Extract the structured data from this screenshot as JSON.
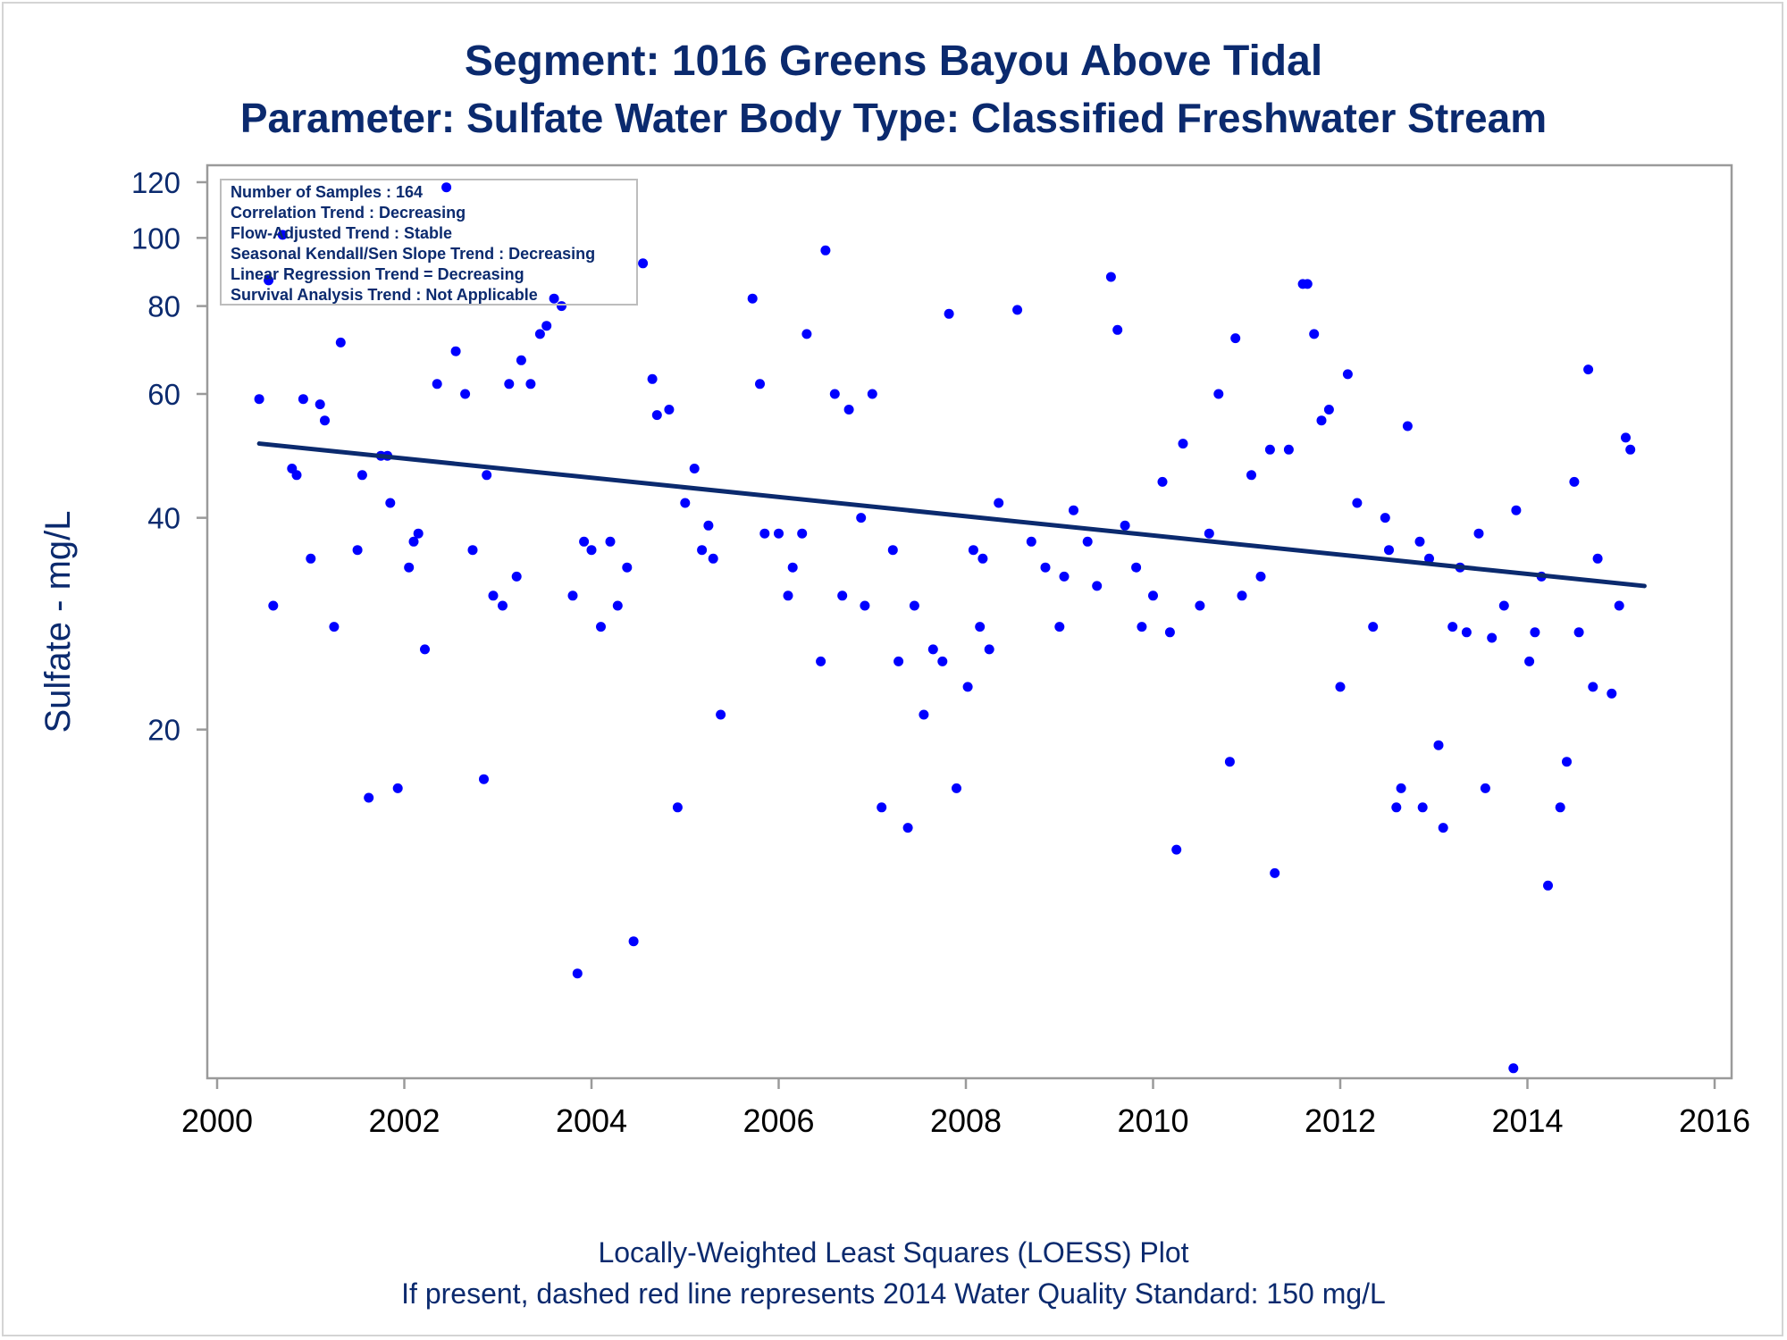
{
  "chart_data": {
    "type": "scatter",
    "title": "Segment: 1016  Greens Bayou Above Tidal",
    "subtitle": "Parameter: Sulfate   Water Body Type: Classified Freshwater Stream",
    "xlabel": "",
    "ylabel": "Sulfate - mg/L",
    "xlim": [
      2000,
      2016
    ],
    "ylim": [
      6.5,
      125
    ],
    "yscale": "log",
    "xticks": [
      "2000",
      "2002",
      "2004",
      "2006",
      "2008",
      "2010",
      "2012",
      "2014",
      "2016"
    ],
    "yticks": [
      "20",
      "40",
      "60",
      "80",
      "100",
      "120"
    ],
    "grid": false,
    "point_color": "#0000ff",
    "line_color": "#0b2a6e",
    "inset_box": [
      "Number of Samples : 164",
      "Correlation Trend : Decreasing",
      "Flow-Adjusted Trend : Stable",
      "Seasonal Kendall/Sen Slope Trend : Decreasing",
      "Linear Regression Trend = Decreasing",
      "Survival Analysis Trend : Not Applicable"
    ],
    "footnotes": [
      "Locally-Weighted Least Squares (LOESS) Plot",
      "If present, dashed red line represents 2014 Water Quality Standard: 150   mg/L"
    ],
    "trend_line": {
      "x": [
        2000.45,
        2015.25
      ],
      "y": [
        51,
        32
      ]
    },
    "points": [
      [
        2000.45,
        59
      ],
      [
        2000.55,
        87
      ],
      [
        2000.6,
        30
      ],
      [
        2000.7,
        101
      ],
      [
        2000.8,
        47
      ],
      [
        2000.85,
        46
      ],
      [
        2000.92,
        59
      ],
      [
        2001.0,
        35
      ],
      [
        2001.1,
        58
      ],
      [
        2001.15,
        55
      ],
      [
        2001.25,
        28
      ],
      [
        2001.32,
        71
      ],
      [
        2001.5,
        36
      ],
      [
        2001.55,
        46
      ],
      [
        2001.62,
        16
      ],
      [
        2001.75,
        49
      ],
      [
        2001.82,
        49
      ],
      [
        2001.85,
        42
      ],
      [
        2001.93,
        16.5
      ],
      [
        2002.05,
        34
      ],
      [
        2002.1,
        37
      ],
      [
        2002.15,
        38
      ],
      [
        2002.22,
        26
      ],
      [
        2002.35,
        62
      ],
      [
        2002.45,
        118
      ],
      [
        2002.55,
        69
      ],
      [
        2002.65,
        60
      ],
      [
        2002.73,
        36
      ],
      [
        2002.85,
        17
      ],
      [
        2002.88,
        46
      ],
      [
        2002.95,
        31
      ],
      [
        2003.05,
        30
      ],
      [
        2003.12,
        62
      ],
      [
        2003.2,
        33
      ],
      [
        2003.25,
        67
      ],
      [
        2003.35,
        62
      ],
      [
        2003.45,
        73
      ],
      [
        2003.52,
        75
      ],
      [
        2003.6,
        82
      ],
      [
        2003.68,
        80
      ],
      [
        2003.8,
        31
      ],
      [
        2003.85,
        9
      ],
      [
        2003.92,
        37
      ],
      [
        2004.0,
        36
      ],
      [
        2004.1,
        28
      ],
      [
        2004.2,
        37
      ],
      [
        2004.28,
        30
      ],
      [
        2004.38,
        34
      ],
      [
        2004.45,
        10
      ],
      [
        2004.55,
        92
      ],
      [
        2004.65,
        63
      ],
      [
        2004.7,
        56
      ],
      [
        2004.83,
        57
      ],
      [
        2004.92,
        15.5
      ],
      [
        2005.0,
        42
      ],
      [
        2005.1,
        47
      ],
      [
        2005.18,
        36
      ],
      [
        2005.25,
        39
      ],
      [
        2005.3,
        35
      ],
      [
        2005.38,
        21
      ],
      [
        2005.72,
        82
      ],
      [
        2005.8,
        62
      ],
      [
        2005.85,
        38
      ],
      [
        2006.0,
        38
      ],
      [
        2006.1,
        31
      ],
      [
        2006.15,
        34
      ],
      [
        2006.25,
        38
      ],
      [
        2006.3,
        73
      ],
      [
        2006.45,
        25
      ],
      [
        2006.5,
        96
      ],
      [
        2006.6,
        60
      ],
      [
        2006.68,
        31
      ],
      [
        2006.75,
        57
      ],
      [
        2006.88,
        40
      ],
      [
        2006.92,
        30
      ],
      [
        2007.0,
        60
      ],
      [
        2007.1,
        15.5
      ],
      [
        2007.22,
        36
      ],
      [
        2007.28,
        25
      ],
      [
        2007.38,
        14.5
      ],
      [
        2007.45,
        30
      ],
      [
        2007.55,
        21
      ],
      [
        2007.65,
        26
      ],
      [
        2007.75,
        25
      ],
      [
        2007.82,
        78
      ],
      [
        2007.9,
        16.5
      ],
      [
        2008.02,
        23
      ],
      [
        2008.08,
        36
      ],
      [
        2008.15,
        28
      ],
      [
        2008.18,
        35
      ],
      [
        2008.25,
        26
      ],
      [
        2008.35,
        42
      ],
      [
        2008.55,
        79
      ],
      [
        2008.7,
        37
      ],
      [
        2008.85,
        34
      ],
      [
        2009.0,
        28
      ],
      [
        2009.05,
        33
      ],
      [
        2009.15,
        41
      ],
      [
        2009.3,
        37
      ],
      [
        2009.4,
        32
      ],
      [
        2009.55,
        88
      ],
      [
        2009.62,
        74
      ],
      [
        2009.7,
        39
      ],
      [
        2009.82,
        34
      ],
      [
        2009.88,
        28
      ],
      [
        2010.0,
        31
      ],
      [
        2010.1,
        45
      ],
      [
        2010.18,
        27.5
      ],
      [
        2010.25,
        13.5
      ],
      [
        2010.32,
        51
      ],
      [
        2010.5,
        30
      ],
      [
        2010.6,
        38
      ],
      [
        2010.7,
        60
      ],
      [
        2010.82,
        18
      ],
      [
        2010.88,
        72
      ],
      [
        2010.95,
        31
      ],
      [
        2011.05,
        46
      ],
      [
        2011.15,
        33
      ],
      [
        2011.25,
        50
      ],
      [
        2011.3,
        12.5
      ],
      [
        2011.45,
        50
      ],
      [
        2011.6,
        86
      ],
      [
        2011.65,
        86
      ],
      [
        2011.72,
        73
      ],
      [
        2011.8,
        55
      ],
      [
        2011.88,
        57
      ],
      [
        2012.0,
        23
      ],
      [
        2012.08,
        64
      ],
      [
        2012.18,
        42
      ],
      [
        2012.35,
        28
      ],
      [
        2012.48,
        40
      ],
      [
        2012.52,
        36
      ],
      [
        2012.6,
        15.5
      ],
      [
        2012.65,
        16.5
      ],
      [
        2012.72,
        54
      ],
      [
        2012.85,
        37
      ],
      [
        2012.88,
        15.5
      ],
      [
        2012.95,
        35
      ],
      [
        2013.05,
        19
      ],
      [
        2013.1,
        14.5
      ],
      [
        2013.2,
        28
      ],
      [
        2013.28,
        34
      ],
      [
        2013.35,
        27.5
      ],
      [
        2013.48,
        38
      ],
      [
        2013.55,
        16.5
      ],
      [
        2013.62,
        27
      ],
      [
        2013.75,
        30
      ],
      [
        2013.85,
        6.6
      ],
      [
        2013.88,
        41
      ],
      [
        2014.02,
        25
      ],
      [
        2014.08,
        27.5
      ],
      [
        2014.15,
        33
      ],
      [
        2014.22,
        12
      ],
      [
        2014.35,
        15.5
      ],
      [
        2014.42,
        18
      ],
      [
        2014.5,
        45
      ],
      [
        2014.55,
        27.5
      ],
      [
        2014.65,
        65
      ],
      [
        2014.7,
        23
      ],
      [
        2014.75,
        35
      ],
      [
        2014.9,
        22.5
      ],
      [
        2014.98,
        30
      ],
      [
        2015.05,
        52
      ],
      [
        2015.1,
        50
      ]
    ]
  }
}
